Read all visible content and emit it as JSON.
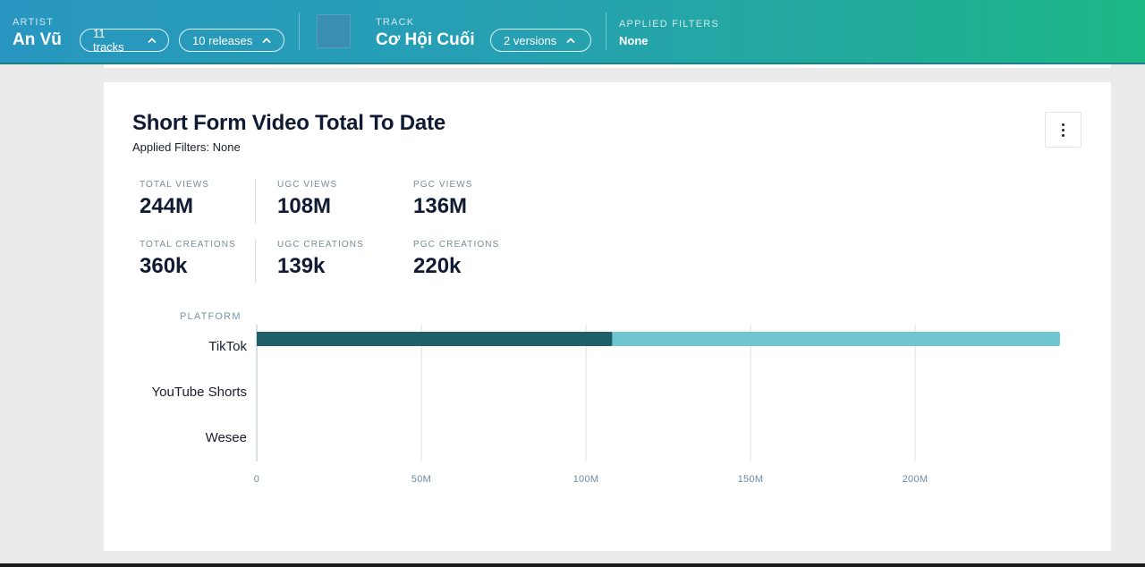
{
  "header": {
    "artist_label": "ARTIST",
    "artist_name": "An Vũ",
    "tracks_pill": "11 tracks",
    "releases_pill": "10 releases",
    "track_label": "TRACK",
    "track_name": "Cơ Hội Cuối",
    "versions_pill": "2 versions",
    "filters_label": "APPLIED FILTERS",
    "filters_value": "None"
  },
  "card": {
    "title": "Short Form Video Total To Date",
    "subtitle": "Applied Filters: None",
    "stats": [
      {
        "label": "TOTAL VIEWS",
        "value": "244M"
      },
      {
        "label": "UGC VIEWS",
        "value": "108M"
      },
      {
        "label": "PGC VIEWS",
        "value": "136M"
      },
      {
        "label": "TOTAL CREATIONS",
        "value": "360k"
      },
      {
        "label": "UGC CREATIONS",
        "value": "139k"
      },
      {
        "label": "PGC CREATIONS",
        "value": "220k"
      }
    ]
  },
  "chart_data": {
    "type": "bar",
    "orientation": "horizontal",
    "stacked": true,
    "ylabel": "PLATFORM",
    "categories": [
      "TikTok",
      "YouTube Shorts",
      "Wesee"
    ],
    "series": [
      {
        "values": [
          108,
          0,
          0
        ],
        "color": "#1e5f6a"
      },
      {
        "values": [
          136,
          0,
          0
        ],
        "color": "#6fc6d0"
      }
    ],
    "xticks": [
      "0",
      "50M",
      "100M",
      "150M",
      "200M"
    ],
    "xtick_values": [
      0,
      50,
      100,
      150,
      200
    ],
    "xlim": [
      0,
      244
    ],
    "grid": true
  }
}
